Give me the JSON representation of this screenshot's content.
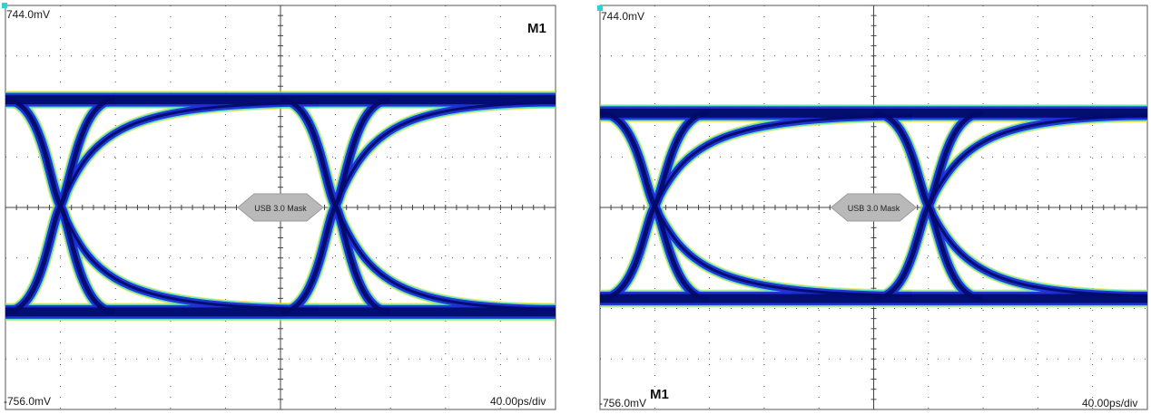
{
  "chart_data": [
    {
      "type": "eye-diagram",
      "title": "M1",
      "y_top_label": "744.0mV",
      "y_bottom_label": "-756.0mV",
      "x_scale_label": "40.00ps/div",
      "mask_label": "USB 3.0 Mask",
      "ylim": [
        -756.0,
        744.0
      ],
      "y_unit": "mV",
      "x_per_div_ps": 40.0,
      "divisions": {
        "x": 10,
        "y": 8
      },
      "grid": true,
      "high_level_mV": 394,
      "low_level_mV": -394,
      "crossing_time_divs": [
        1.0,
        6.0
      ],
      "colors": {
        "dense": "#000a66",
        "mid": "#1f2bd6",
        "light": "#38e0d8",
        "fringe": "#e8e000"
      }
    },
    {
      "type": "eye-diagram",
      "title": "M1",
      "y_top_label": "744.0mV",
      "y_bottom_label": "-756.0mV",
      "x_scale_label": "40.00ps/div",
      "mask_label": "USB 3.0 Mask",
      "ylim": [
        -756.0,
        744.0
      ],
      "y_unit": "mV",
      "x_per_div_ps": 40.0,
      "divisions": {
        "x": 10,
        "y": 8
      },
      "grid": true,
      "high_level_mV": 344,
      "low_level_mV": -344,
      "crossing_time_divs": [
        1.0,
        6.0
      ],
      "colors": {
        "dense": "#000a66",
        "mid": "#1f2bd6",
        "light": "#38e0d8",
        "fringe": "#e8e000"
      }
    }
  ]
}
